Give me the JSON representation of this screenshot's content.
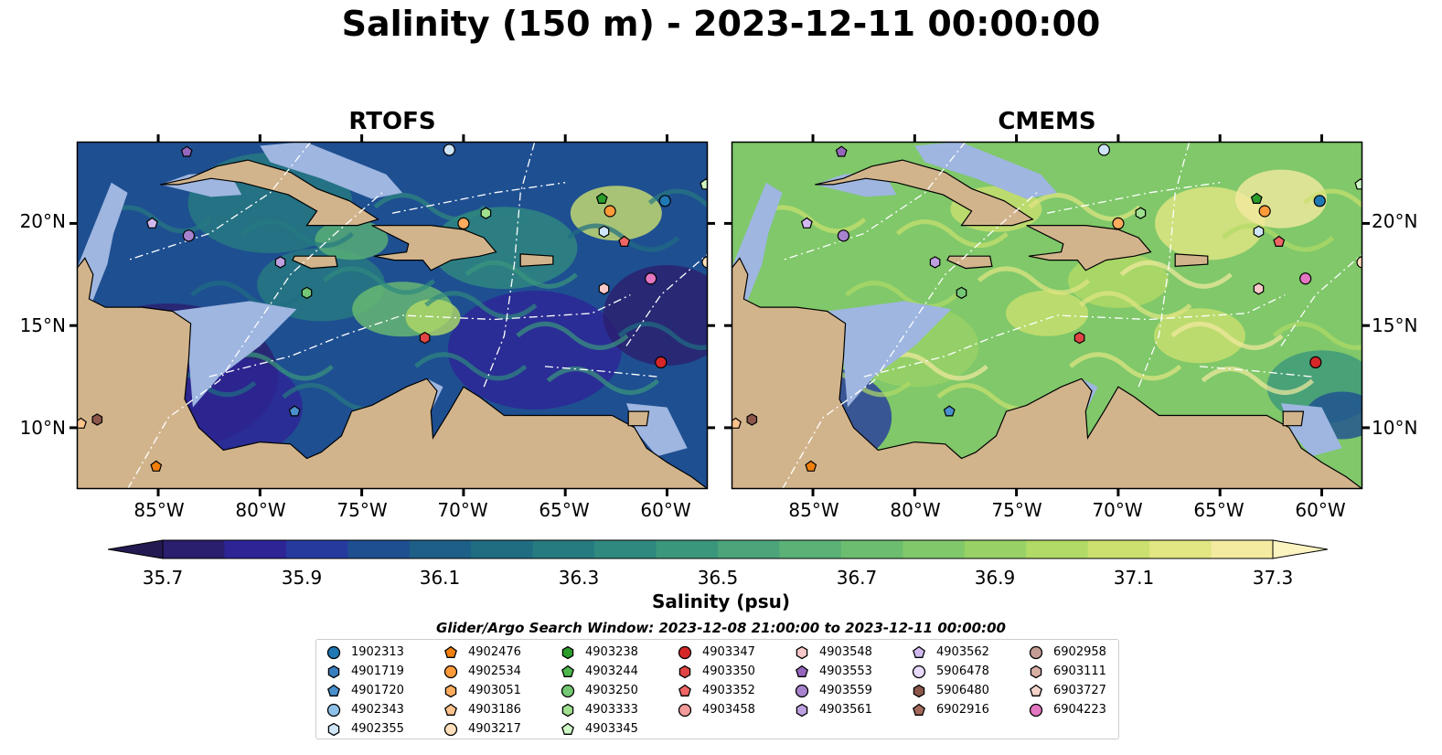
{
  "title": "Salinity (150 m) - 2023-12-11 00:00:00",
  "panels": [
    {
      "title": "RTOFS",
      "ramp": "rtofs"
    },
    {
      "title": "CMEMS",
      "ramp": "cmems"
    }
  ],
  "map": {
    "lon_range": [
      -89,
      -58
    ],
    "lat_range": [
      7,
      24
    ],
    "lon_ticks": [
      "85°W",
      "80°W",
      "75°W",
      "70°W",
      "65°W",
      "60°W"
    ],
    "lon_tick_values": [
      -85,
      -80,
      -75,
      -70,
      -65,
      -60
    ],
    "lat_ticks": [
      "20°N",
      "15°N",
      "10°N"
    ],
    "lat_tick_values": [
      20,
      15,
      10
    ],
    "colors": {
      "land": "#d2b48c",
      "shallow_water": "#9eb6e0",
      "eez": "#ffffff"
    }
  },
  "colorbar": {
    "label": "Salinity (psu)",
    "min": 35.6,
    "max": 37.4,
    "step": 0.1,
    "ticks": [
      "35.7",
      "35.9",
      "36.1",
      "36.3",
      "36.5",
      "36.7",
      "36.9",
      "37.1",
      "37.3"
    ],
    "tick_values": [
      35.7,
      35.9,
      36.1,
      36.3,
      36.5,
      36.7,
      36.9,
      37.1,
      37.3
    ],
    "colors": [
      "#2a1e6e",
      "#2d2496",
      "#263a9e",
      "#1e4f91",
      "#1d5f86",
      "#206d82",
      "#267b80",
      "#2f897f",
      "#3b977c",
      "#4ba47a",
      "#5bb176",
      "#6cbd70",
      "#80c86a",
      "#98d266",
      "#b1da66",
      "#cbe06f",
      "#e2e683",
      "#f4eaa0"
    ],
    "under_color": "#241a52",
    "over_color": "#fbf3c0"
  },
  "legend": {
    "title": "Glider/Argo Search Window: 2023-12-08 21:00:00 to 2023-12-11 00:00:00",
    "columns": [
      [
        {
          "id": "1902313",
          "marker": "circle",
          "color": "#1f77b4"
        },
        {
          "id": "4901719",
          "marker": "hexagon",
          "color": "#3a7fbd"
        },
        {
          "id": "4901720",
          "marker": "pentagon",
          "color": "#4a90cf"
        },
        {
          "id": "4902343",
          "marker": "circle",
          "color": "#8ec1ea"
        },
        {
          "id": "4902355",
          "marker": "hexagon",
          "color": "#cfe6f8"
        }
      ],
      [
        {
          "id": "4902476",
          "marker": "pentagon",
          "color": "#f07f0e"
        },
        {
          "id": "4902534",
          "marker": "circle",
          "color": "#fd9a3a"
        },
        {
          "id": "4903051",
          "marker": "hexagon",
          "color": "#ffac5e"
        },
        {
          "id": "4903186",
          "marker": "pentagon",
          "color": "#ffc38c"
        },
        {
          "id": "4903217",
          "marker": "circle",
          "color": "#ffe0bd"
        }
      ],
      [
        {
          "id": "4903238",
          "marker": "hexagon",
          "color": "#2a9c2a"
        },
        {
          "id": "4903244",
          "marker": "pentagon",
          "color": "#4cb74c"
        },
        {
          "id": "4903250",
          "marker": "circle",
          "color": "#74c774"
        },
        {
          "id": "4903333",
          "marker": "hexagon",
          "color": "#9fe08f"
        },
        {
          "id": "4903345",
          "marker": "pentagon",
          "color": "#cdf7c4"
        }
      ],
      [
        {
          "id": "4903347",
          "marker": "circle",
          "color": "#d62728"
        },
        {
          "id": "4903350",
          "marker": "hexagon",
          "color": "#e04444"
        },
        {
          "id": "4903352",
          "marker": "pentagon",
          "color": "#f06565"
        },
        {
          "id": "4903458",
          "marker": "circle",
          "color": "#f49a9a"
        }
      ],
      [
        {
          "id": "4903548",
          "marker": "hexagon",
          "color": "#f9c9c9"
        },
        {
          "id": "4903553",
          "marker": "pentagon",
          "color": "#9467bd"
        },
        {
          "id": "4903559",
          "marker": "circle",
          "color": "#a783cd"
        },
        {
          "id": "4903561",
          "marker": "hexagon",
          "color": "#bea0e0"
        }
      ],
      [
        {
          "id": "4903562",
          "marker": "pentagon",
          "color": "#d1b9f0"
        },
        {
          "id": "5906478",
          "marker": "circle",
          "color": "#e9d9fb"
        },
        {
          "id": "5906480",
          "marker": "hexagon",
          "color": "#8c564b"
        },
        {
          "id": "6902916",
          "marker": "pentagon",
          "color": "#a36a5c"
        }
      ],
      [
        {
          "id": "6902958",
          "marker": "circle",
          "color": "#c49c94"
        },
        {
          "id": "6903111",
          "marker": "hexagon",
          "color": "#d8aea3"
        },
        {
          "id": "6903727",
          "marker": "pentagon",
          "color": "#f4d3c8"
        },
        {
          "id": "6904223",
          "marker": "circle",
          "color": "#e377c2"
        }
      ]
    ]
  },
  "observations": [
    {
      "marker": "circle",
      "color": "#1f77b4",
      "lon": -60.1,
      "lat": 21.1
    },
    {
      "marker": "pentagon",
      "color": "#2a9c2a",
      "lon": -63.2,
      "lat": 21.2
    },
    {
      "marker": "circle",
      "color": "#fd9a3a",
      "lon": -62.8,
      "lat": 20.6
    },
    {
      "marker": "hexagon",
      "color": "#cfe6f8",
      "lon": -63.1,
      "lat": 19.6
    },
    {
      "marker": "pentagon",
      "color": "#f06565",
      "lon": -62.1,
      "lat": 19.1
    },
    {
      "marker": "circle",
      "color": "#e377c2",
      "lon": -60.8,
      "lat": 17.3
    },
    {
      "marker": "hexagon",
      "color": "#f9c9c9",
      "lon": -63.1,
      "lat": 16.8
    },
    {
      "marker": "circle",
      "color": "#d62728",
      "lon": -60.3,
      "lat": 13.2
    },
    {
      "marker": "hexagon",
      "color": "#e04444",
      "lon": -71.9,
      "lat": 14.4
    },
    {
      "marker": "pentagon",
      "color": "#4a90cf",
      "lon": -78.3,
      "lat": 10.8
    },
    {
      "marker": "hexagon",
      "color": "#9fe08f",
      "lon": -68.9,
      "lat": 20.5
    },
    {
      "marker": "circle",
      "color": "#ffac5e",
      "lon": -70.0,
      "lat": 20.0
    },
    {
      "marker": "circle",
      "color": "#cfe6f8",
      "lon": -70.7,
      "lat": 23.6
    },
    {
      "marker": "pentagon",
      "color": "#9467bd",
      "lon": -83.6,
      "lat": 23.5
    },
    {
      "marker": "pentagon",
      "color": "#d1b9f0",
      "lon": -85.3,
      "lat": 20.0
    },
    {
      "marker": "circle",
      "color": "#a783cd",
      "lon": -83.5,
      "lat": 19.4
    },
    {
      "marker": "hexagon",
      "color": "#bea0e0",
      "lon": -79.0,
      "lat": 18.1
    },
    {
      "marker": "hexagon",
      "color": "#74c774",
      "lon": -77.7,
      "lat": 16.6
    },
    {
      "marker": "pentagon",
      "color": "#f07f0e",
      "lon": -85.1,
      "lat": 8.1
    },
    {
      "marker": "hexagon",
      "color": "#8c564b",
      "lon": -88.0,
      "lat": 10.4
    },
    {
      "marker": "pentagon",
      "color": "#ffc38c",
      "lon": -88.8,
      "lat": 10.2
    },
    {
      "marker": "pentagon",
      "color": "#cdf7c4",
      "lon": -58.1,
      "lat": 21.9
    },
    {
      "marker": "circle",
      "color": "#ffe0bd",
      "lon": -58.0,
      "lat": 18.1
    }
  ]
}
